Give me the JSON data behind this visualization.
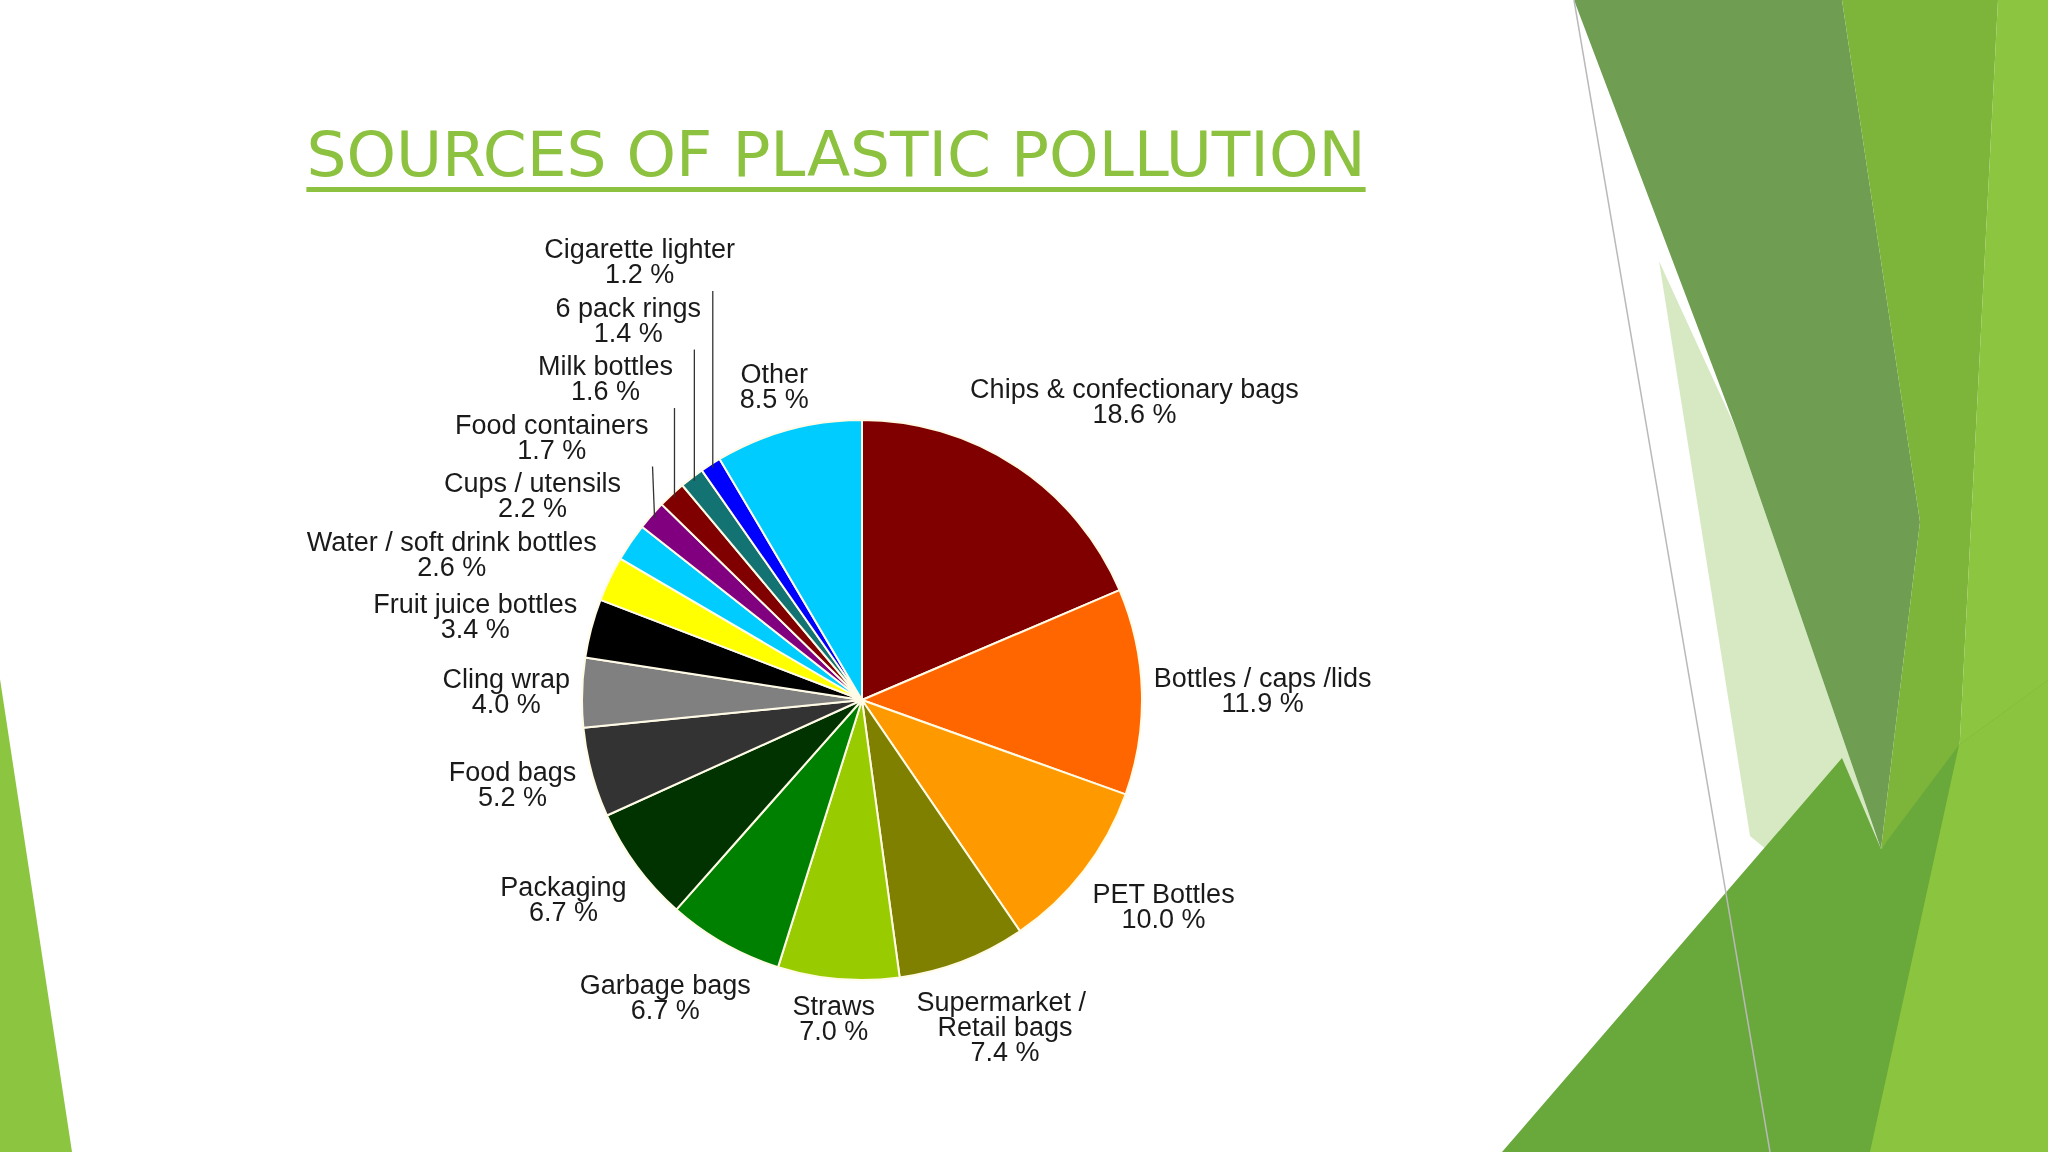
{
  "chart_data": {
    "type": "pie",
    "title": "SOURCES OF PLASTIC POLLUTION",
    "categories": [
      "Chips & confectionary bags",
      "Bottles / caps /lids",
      "PET Bottles",
      "Supermarket /\nRetail bags",
      "Straws",
      "Garbage bags",
      "Packaging",
      "Food bags",
      "Cling wrap",
      "Fruit juice bottles",
      "Water / soft drink bottles",
      "Cups / utensils",
      "Food containers",
      "Milk bottles",
      "6 pack rings",
      "Cigarette lighter",
      "Other"
    ],
    "values": [
      18.6,
      11.9,
      10.0,
      7.4,
      7.0,
      6.7,
      6.7,
      5.2,
      4.0,
      3.4,
      2.6,
      2.2,
      1.7,
      1.6,
      1.4,
      1.2,
      8.5
    ],
    "colors": [
      "#800000",
      "#ff6600",
      "#ff9900",
      "#808000",
      "#99cc00",
      "#008000",
      "#003300",
      "#333333",
      "#808080",
      "#000000",
      "#ffff00",
      "#00ccff",
      "#800080",
      "#800000",
      "#137373",
      "#0000ff",
      "#00ccff"
    ],
    "value_labels": [
      "18.6 %",
      "11.9 %",
      "10.0 %",
      "7.4 %",
      "7.0 %",
      "6.7 %",
      "6.7 %",
      "5.2 %",
      "4.0 %",
      "3.4 %",
      "2.6 %",
      "2.2 %",
      "1.7 %",
      "1.6 %",
      "1.4 %",
      "1.2 %",
      "8.5 %"
    ]
  }
}
